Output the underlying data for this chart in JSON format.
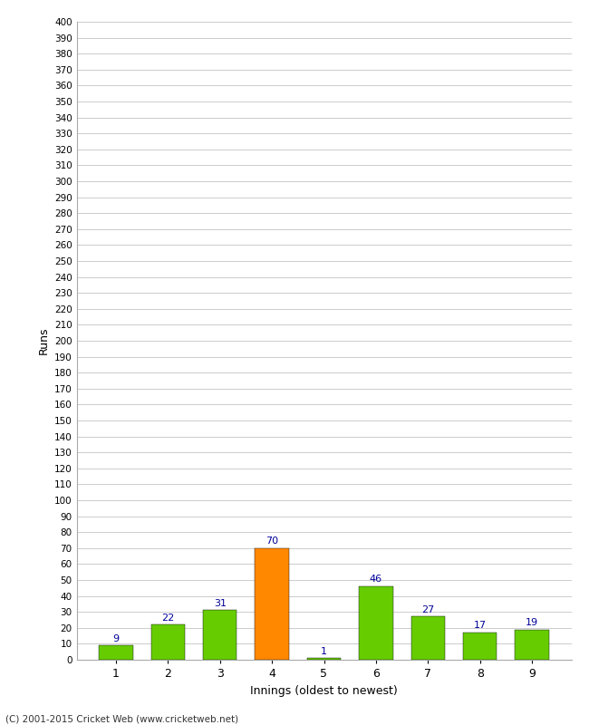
{
  "categories": [
    "1",
    "2",
    "3",
    "4",
    "5",
    "6",
    "7",
    "8",
    "9"
  ],
  "values": [
    9,
    22,
    31,
    70,
    1,
    46,
    27,
    17,
    19
  ],
  "bar_colors": [
    "#66cc00",
    "#66cc00",
    "#66cc00",
    "#ff8800",
    "#66cc00",
    "#66cc00",
    "#66cc00",
    "#66cc00",
    "#66cc00"
  ],
  "xlabel": "Innings (oldest to newest)",
  "ylabel": "Runs",
  "ylim": [
    0,
    400
  ],
  "background_color": "#ffffff",
  "grid_color": "#cccccc",
  "label_color": "#000099",
  "footer": "(C) 2001-2015 Cricket Web (www.cricketweb.net)",
  "bar_edge_color": "#000000",
  "bar_edge_width": 0.3,
  "bar_width": 0.65
}
